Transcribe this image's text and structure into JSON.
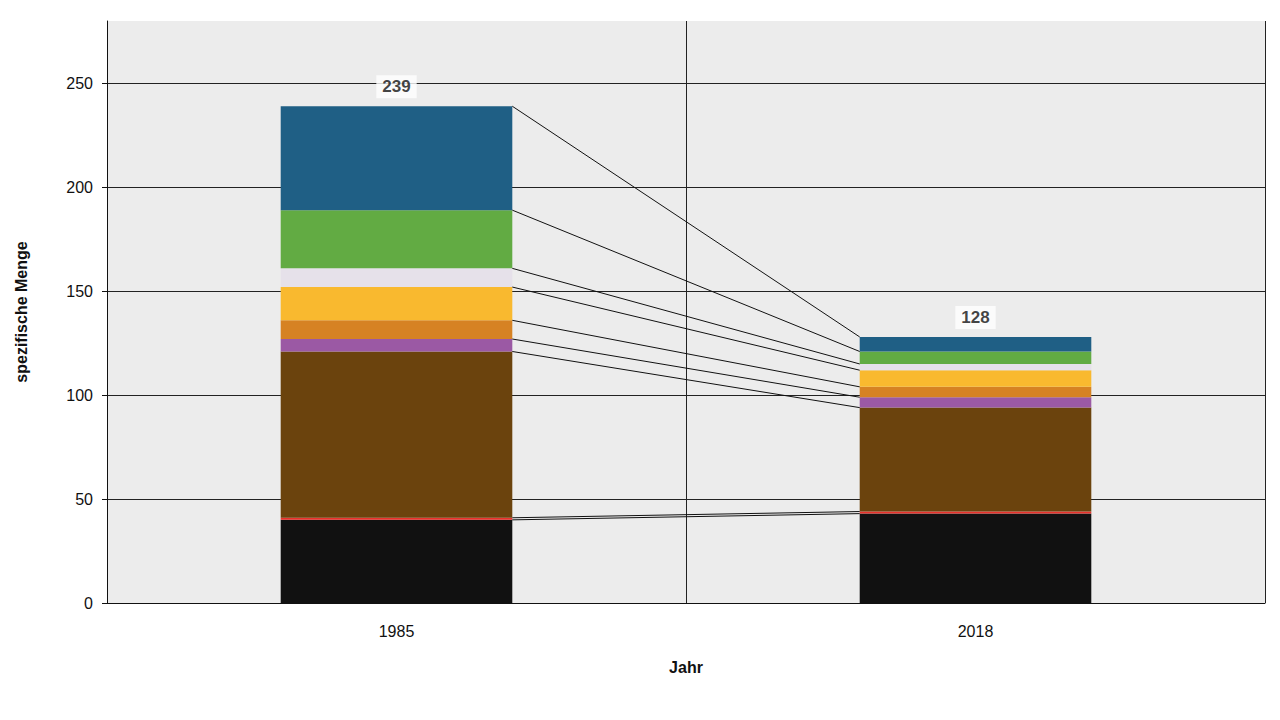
{
  "chart_data": {
    "type": "bar",
    "stacked": true,
    "x_label": "Jahr",
    "y_label": "spezifische Menge",
    "categories": [
      "1985",
      "2018"
    ],
    "series": [
      {
        "color": "#111111",
        "values": [
          40,
          43
        ]
      },
      {
        "color": "#e8302a",
        "values": [
          1,
          1
        ]
      },
      {
        "color": "#6b430d",
        "values": [
          80,
          50
        ]
      },
      {
        "color": "#9b59a4",
        "values": [
          6,
          5
        ]
      },
      {
        "color": "#d68223",
        "values": [
          9,
          5
        ]
      },
      {
        "color": "#f9b92f",
        "values": [
          16,
          8
        ]
      },
      {
        "color": "#e6e1ea",
        "values": [
          9,
          3
        ]
      },
      {
        "color": "#62ab43",
        "values": [
          28,
          6
        ]
      },
      {
        "color": "#1f5f85",
        "values": [
          50,
          7
        ]
      }
    ],
    "totals": [
      239,
      128
    ],
    "ylim": [
      0,
      280
    ],
    "yticks": [
      0,
      50,
      100,
      150,
      200,
      250
    ],
    "grid": true
  }
}
